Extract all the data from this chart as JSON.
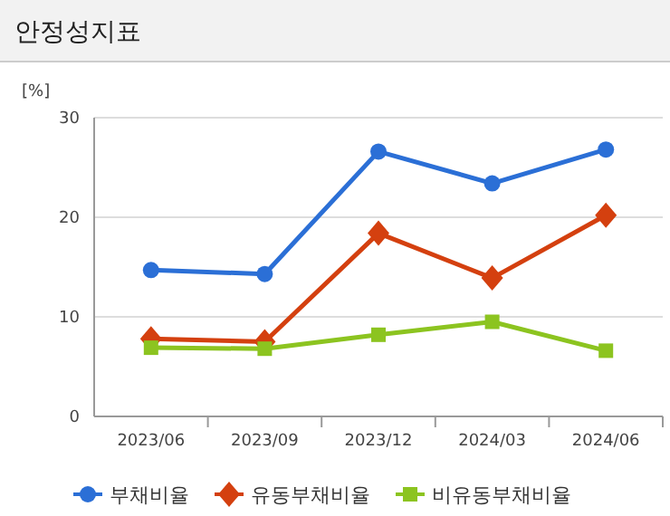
{
  "chart_data": {
    "type": "line",
    "title": "안정성지표",
    "ylabel": "[%]",
    "categories": [
      "2023/06",
      "2023/09",
      "2023/12",
      "2024/03",
      "2024/06"
    ],
    "ylim": [
      0,
      30
    ],
    "yticks": [
      0,
      10,
      20,
      30
    ],
    "grid": "y",
    "legend": "bottom",
    "series": [
      {
        "name": "부채비율",
        "color": "#2b6fd6",
        "marker": "circle",
        "values": [
          14.7,
          14.3,
          26.6,
          23.4,
          26.8
        ]
      },
      {
        "name": "유동부채비율",
        "color": "#d4400f",
        "marker": "diamond",
        "values": [
          7.8,
          7.5,
          18.4,
          13.9,
          20.2
        ]
      },
      {
        "name": "비유동부채비율",
        "color": "#8cc420",
        "marker": "square",
        "values": [
          6.9,
          6.8,
          8.2,
          9.5,
          6.6
        ]
      }
    ]
  }
}
